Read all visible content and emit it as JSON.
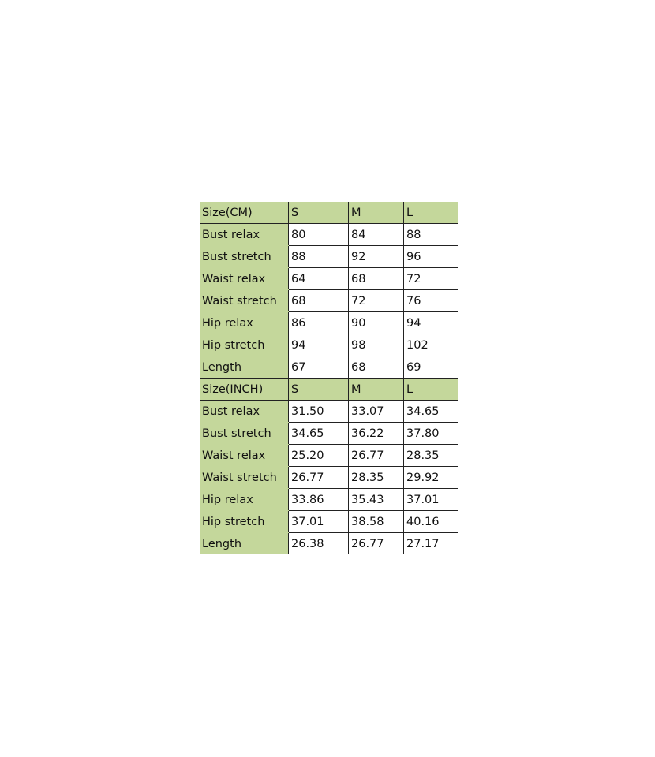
{
  "header_color": "#c4d79b",
  "sections": [
    {
      "header": [
        "Size(CM)",
        "S",
        "M",
        "L"
      ],
      "rows": [
        [
          "Bust relax",
          "80",
          "84",
          "88"
        ],
        [
          "Bust stretch",
          "88",
          "92",
          "96"
        ],
        [
          "Waist relax",
          "64",
          "68",
          "72"
        ],
        [
          "Waist stretch",
          "68",
          "72",
          "76"
        ],
        [
          "Hip relax",
          "86",
          "90",
          "94"
        ],
        [
          "Hip stretch",
          "94",
          "98",
          "102"
        ],
        [
          "Length",
          "67",
          "68",
          "69"
        ]
      ]
    },
    {
      "header": [
        "Size(INCH)",
        "S",
        "M",
        "L"
      ],
      "rows": [
        [
          "Bust relax",
          "31.50",
          "33.07",
          "34.65"
        ],
        [
          "Bust stretch",
          "34.65",
          "36.22",
          "37.80"
        ],
        [
          "Waist relax",
          "25.20",
          "26.77",
          "28.35"
        ],
        [
          "Waist stretch",
          "26.77",
          "28.35",
          "29.92"
        ],
        [
          "Hip relax",
          "33.86",
          "35.43",
          "37.01"
        ],
        [
          "Hip stretch",
          "37.01",
          "38.58",
          "40.16"
        ],
        [
          "Length",
          "26.38",
          "26.77",
          "27.17"
        ]
      ]
    }
  ]
}
